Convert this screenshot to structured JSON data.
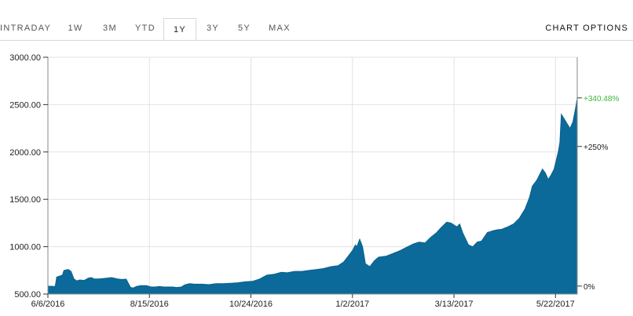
{
  "tabs": [
    "INTRADAY",
    "1W",
    "3M",
    "YTD",
    "1Y",
    "3Y",
    "5Y",
    "MAX"
  ],
  "active_tab": "1Y",
  "chart_options_label": "CHART OPTIONS",
  "colors": {
    "fill": "#0b6a99",
    "stroke": "#0a5f8a",
    "grid": "#e2e2e2",
    "pct_green": "#3cb63c"
  },
  "chart_data": {
    "type": "area",
    "x_tick_labels": [
      "6/6/2016",
      "8/15/2016",
      "10/24/2016",
      "1/2/2017",
      "3/13/2017",
      "5/22/2017"
    ],
    "y_tick_labels": [
      "3000.00",
      "2500.00",
      "2000.00",
      "1500.00",
      "1000.00",
      "500.00"
    ],
    "ylim": [
      500,
      3000
    ],
    "xlim": [
      "2016-06-06",
      "2017-06-06"
    ],
    "grid": true,
    "right_axis_labels": [
      {
        "label": "+340.48%",
        "value": 2571,
        "highlight": true
      },
      {
        "label": "+250%",
        "value": 2058,
        "highlight": false
      },
      {
        "label": "0%",
        "value": 584,
        "highlight": false
      }
    ],
    "series": [
      {
        "values": [
          [
            "2016-06-06",
            584
          ],
          [
            "2016-06-09",
            583
          ],
          [
            "2016-06-11",
            580
          ],
          [
            "2016-06-12",
            680
          ],
          [
            "2016-06-14",
            690
          ],
          [
            "2016-06-16",
            700
          ],
          [
            "2016-06-17",
            750
          ],
          [
            "2016-06-20",
            760
          ],
          [
            "2016-06-22",
            740
          ],
          [
            "2016-06-24",
            660
          ],
          [
            "2016-06-26",
            640
          ],
          [
            "2016-06-28",
            650
          ],
          [
            "2016-07-01",
            645
          ],
          [
            "2016-07-04",
            670
          ],
          [
            "2016-07-06",
            675
          ],
          [
            "2016-07-08",
            660
          ],
          [
            "2016-07-11",
            660
          ],
          [
            "2016-07-14",
            665
          ],
          [
            "2016-07-17",
            670
          ],
          [
            "2016-07-20",
            675
          ],
          [
            "2016-07-24",
            660
          ],
          [
            "2016-07-27",
            655
          ],
          [
            "2016-07-30",
            658
          ],
          [
            "2016-08-02",
            570
          ],
          [
            "2016-08-04",
            565
          ],
          [
            "2016-08-06",
            580
          ],
          [
            "2016-08-09",
            590
          ],
          [
            "2016-08-13",
            590
          ],
          [
            "2016-08-16",
            575
          ],
          [
            "2016-08-19",
            575
          ],
          [
            "2016-08-22",
            580
          ],
          [
            "2016-08-25",
            575
          ],
          [
            "2016-08-28",
            575
          ],
          [
            "2016-08-31",
            575
          ],
          [
            "2016-09-03",
            570
          ],
          [
            "2016-09-06",
            575
          ],
          [
            "2016-09-08",
            595
          ],
          [
            "2016-09-10",
            605
          ],
          [
            "2016-09-12",
            610
          ],
          [
            "2016-09-15",
            605
          ],
          [
            "2016-09-20",
            605
          ],
          [
            "2016-09-25",
            600
          ],
          [
            "2016-09-30",
            610
          ],
          [
            "2016-10-05",
            610
          ],
          [
            "2016-10-10",
            615
          ],
          [
            "2016-10-15",
            620
          ],
          [
            "2016-10-20",
            630
          ],
          [
            "2016-10-25",
            635
          ],
          [
            "2016-10-30",
            660
          ],
          [
            "2016-11-04",
            700
          ],
          [
            "2016-11-09",
            710
          ],
          [
            "2016-11-14",
            730
          ],
          [
            "2016-11-18",
            725
          ],
          [
            "2016-11-23",
            740
          ],
          [
            "2016-11-28",
            740
          ],
          [
            "2016-12-03",
            750
          ],
          [
            "2016-12-08",
            760
          ],
          [
            "2016-12-13",
            770
          ],
          [
            "2016-12-18",
            790
          ],
          [
            "2016-12-23",
            800
          ],
          [
            "2016-12-27",
            840
          ],
          [
            "2016-12-30",
            900
          ],
          [
            "2017-01-02",
            960
          ],
          [
            "2017-01-04",
            1020
          ],
          [
            "2017-01-05",
            1000
          ],
          [
            "2017-01-07",
            1080
          ],
          [
            "2017-01-09",
            1000
          ],
          [
            "2017-01-11",
            820
          ],
          [
            "2017-01-14",
            790
          ],
          [
            "2017-01-17",
            850
          ],
          [
            "2017-01-20",
            890
          ],
          [
            "2017-01-25",
            900
          ],
          [
            "2017-01-30",
            930
          ],
          [
            "2017-02-04",
            960
          ],
          [
            "2017-02-09",
            1000
          ],
          [
            "2017-02-13",
            1030
          ],
          [
            "2017-02-17",
            1050
          ],
          [
            "2017-02-21",
            1040
          ],
          [
            "2017-02-25",
            1100
          ],
          [
            "2017-03-01",
            1150
          ],
          [
            "2017-03-04",
            1200
          ],
          [
            "2017-03-08",
            1260
          ],
          [
            "2017-03-11",
            1250
          ],
          [
            "2017-03-15",
            1210
          ],
          [
            "2017-03-17",
            1240
          ],
          [
            "2017-03-19",
            1150
          ],
          [
            "2017-03-23",
            1020
          ],
          [
            "2017-03-26",
            1000
          ],
          [
            "2017-03-29",
            1050
          ],
          [
            "2017-04-01",
            1060
          ],
          [
            "2017-04-05",
            1150
          ],
          [
            "2017-04-09",
            1170
          ],
          [
            "2017-04-12",
            1180
          ],
          [
            "2017-04-15",
            1185
          ],
          [
            "2017-04-19",
            1210
          ],
          [
            "2017-04-23",
            1240
          ],
          [
            "2017-04-27",
            1300
          ],
          [
            "2017-05-01",
            1400
          ],
          [
            "2017-05-04",
            1520
          ],
          [
            "2017-05-06",
            1640
          ],
          [
            "2017-05-09",
            1700
          ],
          [
            "2017-05-11",
            1760
          ],
          [
            "2017-05-13",
            1820
          ],
          [
            "2017-05-15",
            1780
          ],
          [
            "2017-05-17",
            1710
          ],
          [
            "2017-05-19",
            1760
          ],
          [
            "2017-05-21",
            1820
          ],
          [
            "2017-05-24",
            2010
          ],
          [
            "2017-05-25",
            2100
          ],
          [
            "2017-05-26",
            2400
          ],
          [
            "2017-05-28",
            2350
          ],
          [
            "2017-05-30",
            2300
          ],
          [
            "2017-06-01",
            2250
          ],
          [
            "2017-06-03",
            2320
          ],
          [
            "2017-06-05",
            2480
          ],
          [
            "2017-06-06",
            2571
          ]
        ]
      }
    ]
  }
}
